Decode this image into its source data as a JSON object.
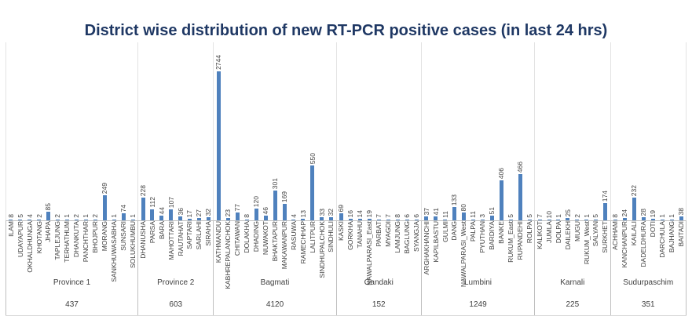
{
  "chart_data": {
    "type": "bar",
    "title": "District wise distribution of new RT-PCR positive cases (in last 24 hrs)",
    "xlabel": "",
    "ylabel": "",
    "ylim": [
      0,
      1500
    ],
    "grid": false,
    "legend": false,
    "value_labels": "rotated-vertical-above-bars",
    "category_labels": "rotated-vertical-below-axis",
    "colors": {
      "bar": "#4F81BD",
      "title": "#1F3864",
      "label": "#404040",
      "axis_line": "#BFBFBF",
      "group_separator": "#BFBFBF",
      "plot_separator": "#E3E3E3"
    },
    "groups": [
      {
        "province": "Province 1",
        "total": "437",
        "districts": [
          "ILAM",
          "UDAYAPUR",
          "OKHALDHUNGA",
          "KHOTANG",
          "JHAPA",
          "TAPLEJUNG",
          "TERHATHUM",
          "DHANKUTA",
          "PANCHTHAR",
          "BHOJPUR",
          "MORANG",
          "SANKHUWASABHA",
          "SUNSARI",
          "SOLUKHUMBU"
        ],
        "values": [
          8,
          5,
          4,
          2,
          85,
          2,
          1,
          2,
          1,
          2,
          249,
          1,
          74,
          1
        ]
      },
      {
        "province": "Province 2",
        "total": "603",
        "districts": [
          "DHANUSHA",
          "PARSA",
          "BARA",
          "MAHOTTARI",
          "RAUTAHAT",
          "SAPTARI",
          "SARLAHI",
          "SIRAHA"
        ],
        "values": [
          228,
          112,
          44,
          107,
          36,
          17,
          27,
          32
        ]
      },
      {
        "province": "Bagmati",
        "total": "4120",
        "districts": [
          "KATHMANDU",
          "KABHREPALANCHOK",
          "CHITAWAN",
          "DOLAKHA",
          "DHADING",
          "NUWAKOT",
          "BHAKTAPUR",
          "MAKAWANPUR",
          "RASUWA",
          "RAMECHHAP",
          "LALITPUR",
          "SINDHUPALCHOK",
          "SINDHULI"
        ],
        "values": [
          2744,
          23,
          77,
          8,
          120,
          46,
          301,
          169,
          4,
          13,
          550,
          33,
          32
        ]
      },
      {
        "province": "Gandaki",
        "total": "152",
        "districts": [
          "KASKI",
          "GORKHA",
          "TANAHU",
          "NAWALPARASI_East",
          "PARBAT",
          "MYAGDI",
          "LAMJUNG",
          "BAGLUNG",
          "SYANGJA"
        ],
        "values": [
          69,
          16,
          14,
          19,
          7,
          7,
          8,
          6,
          6
        ]
      },
      {
        "province": "Lumbini",
        "total": "1249",
        "districts": [
          "ARGHAKHANCHI",
          "KAPILBASTU",
          "GULMI",
          "DANG",
          "NAWALPARASI_West",
          "PALPA",
          "PYUTHAN",
          "BARDIYA",
          "BANKE",
          "RUKUM_East",
          "RUPANDEHI",
          "ROLPA"
        ],
        "values": [
          37,
          41,
          11,
          133,
          80,
          11,
          3,
          51,
          406,
          5,
          466,
          5
        ]
      },
      {
        "province": "Karnali",
        "total": "225",
        "districts": [
          "KALIKOT",
          "JUMLA",
          "DOLPA",
          "DAILEKH",
          "MUGU",
          "RUKUM_West",
          "SALYAN",
          "SURKHET"
        ],
        "values": [
          7,
          10,
          1,
          25,
          2,
          1,
          5,
          174
        ]
      },
      {
        "province": "Sudurpaschim",
        "total": "351",
        "districts": [
          "ACHHAM",
          "KANCHANPUR",
          "KAILALI",
          "DADELDHURA",
          "DOTI",
          "DARCHULA",
          "BAJHANG",
          "BAITADI"
        ],
        "values": [
          8,
          24,
          232,
          28,
          19,
          1,
          1,
          38
        ]
      }
    ]
  }
}
